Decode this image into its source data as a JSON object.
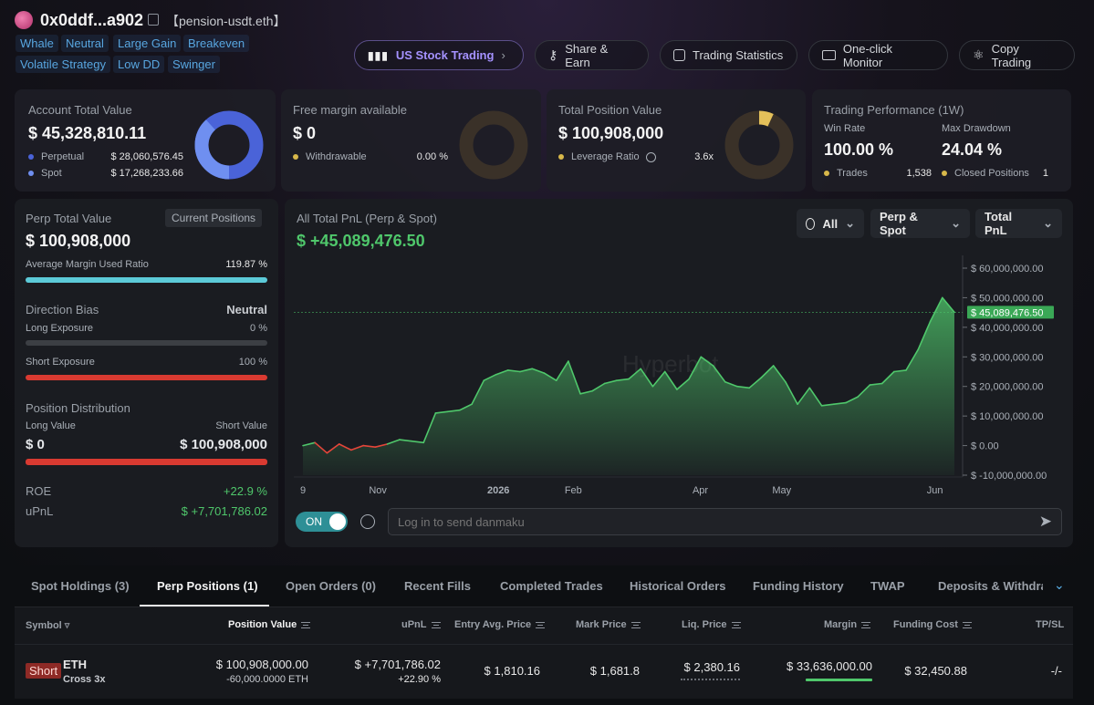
{
  "header": {
    "address": "0x0ddf...a902",
    "ens": "【pension-usdt.eth】",
    "tags_row1": [
      "Whale",
      "Neutral",
      "Large Gain",
      "Breakeven"
    ],
    "tags_row2": [
      "Volatile Strategy",
      "Low DD",
      "Swinger"
    ]
  },
  "nav": {
    "us_stock": "US Stock Trading",
    "share": "Share & Earn",
    "stats": "Trading Statistics",
    "monitor": "One-click Monitor",
    "copy": "Copy Trading"
  },
  "account": {
    "label": "Account Total Value",
    "value": "$ 45,328,810.11",
    "perpetual_label": "Perpetual",
    "perpetual_value": "$ 28,060,576.45",
    "spot_label": "Spot",
    "spot_value": "$ 17,268,233.66",
    "perp_color": "#4a63d8",
    "spot_color": "#6f8ff0"
  },
  "margin": {
    "label": "Free margin available",
    "value": "$ 0",
    "withdrawable_label": "Withdrawable",
    "withdrawable_value": "0.00 %"
  },
  "position": {
    "label": "Total Position Value",
    "value": "$ 100,908,000",
    "leverage_label": "Leverage Ratio",
    "leverage_value": "3.6x"
  },
  "performance": {
    "label": "Trading Performance (1W)",
    "win_rate_label": "Win Rate",
    "win_rate": "100.00 %",
    "drawdown_label": "Max Drawdown",
    "drawdown": "24.04 %",
    "trades_label": "Trades",
    "trades": "1,538",
    "closed_label": "Closed Positions",
    "closed": "1"
  },
  "perp": {
    "label": "Perp Total Value",
    "current_btn": "Current Positions",
    "value": "$ 100,908,000",
    "avg_margin_label": "Average Margin Used Ratio",
    "avg_margin": "119.87 %",
    "avg_margin_fill": 1.0,
    "direction_label": "Direction Bias",
    "direction": "Neutral",
    "long_label": "Long Exposure",
    "long_value": "0 %",
    "short_label": "Short Exposure",
    "short_value": "100 %",
    "distribution_label": "Position Distribution",
    "long_value_label": "Long Value",
    "short_value_label": "Short Value",
    "long_amount": "$ 0",
    "short_amount": "$ 100,908,000",
    "roe_label": "ROE",
    "roe": "+22.9 %",
    "upnl_label": "uPnL",
    "upnl": "$ +7,701,786.02"
  },
  "pnl": {
    "label": "All Total PnL (Perp & Spot)",
    "value": "$ +45,089,476.50",
    "filter_all": "All",
    "filter_type": "Perp & Spot",
    "filter_metric": "Total PnL",
    "current_label": "$ 45,089,476.50",
    "watermark": "Hyperbot",
    "toggle": "ON",
    "danmaku_placeholder": "Log in to send danmaku"
  },
  "chart_data": {
    "type": "area",
    "title": "",
    "ylim": [
      -10000000,
      60000000
    ],
    "y_ticks": [
      60000000,
      50000000,
      40000000,
      30000000,
      20000000,
      10000000,
      0,
      -10000000
    ],
    "y_tick_labels": [
      "$ 60,000,000.00",
      "$ 50,000,000.00",
      "$ 40,000,000.00",
      "$ 30,000,000.00",
      "$ 20,000,000.00",
      "$ 10,000,000.00",
      "$ 0.00",
      "$ -10,000,000.00"
    ],
    "x_tick_labels": [
      "9",
      "Nov",
      "2026",
      "Feb",
      "Apr",
      "May",
      "Jun"
    ],
    "x_tick_pos": [
      0,
      0.115,
      0.3,
      0.415,
      0.61,
      0.735,
      0.97
    ],
    "values": [
      0,
      1000000,
      -2500000,
      500000,
      -1500000,
      0,
      -500000,
      500000,
      2000000,
      1500000,
      1000000,
      11000000,
      11500000,
      12000000,
      14000000,
      22000000,
      24000000,
      25500000,
      25000000,
      26000000,
      24500000,
      22000000,
      28500000,
      17500000,
      18500000,
      21000000,
      22000000,
      22500000,
      26000000,
      20000000,
      25000000,
      19000000,
      22500000,
      30000000,
      27000000,
      21500000,
      20000000,
      19500000,
      23000000,
      27000000,
      21500000,
      14000000,
      19500000,
      13500000,
      14000000,
      14500000,
      16500000,
      20500000,
      21000000,
      25000000,
      25500000,
      32500000,
      42000000,
      50000000,
      45089476
    ],
    "line_color": "#4fc76b",
    "down_color": "#e5453a"
  },
  "tabs": [
    "Spot Holdings (3)",
    "Perp Positions (1)",
    "Open Orders (0)",
    "Recent Fills",
    "Completed Trades",
    "Historical Orders",
    "Funding History",
    "TWAP",
    "Deposits & Withdraw"
  ],
  "table": {
    "headers": {
      "symbol": "Symbol",
      "position_value": "Position Value",
      "upnl": "uPnL",
      "entry": "Entry Avg. Price",
      "mark": "Mark Price",
      "liq": "Liq. Price",
      "margin": "Margin",
      "funding": "Funding Cost",
      "tpsl": "TP/SL"
    },
    "row": {
      "side": "Short",
      "symbol": "ETH",
      "mode": "Cross 3x",
      "position_value": "$ 100,908,000.00",
      "position_size": "-60,000.0000 ETH",
      "upnl": "$ +7,701,786.02",
      "upnl_pct": "+22.90 %",
      "entry": "$ 1,810.16",
      "mark": "$ 1,681.8",
      "liq": "$ 2,380.16",
      "margin": "$ 33,636,000.00",
      "funding": "$ 32,450.88",
      "tpsl": "-/-"
    }
  }
}
